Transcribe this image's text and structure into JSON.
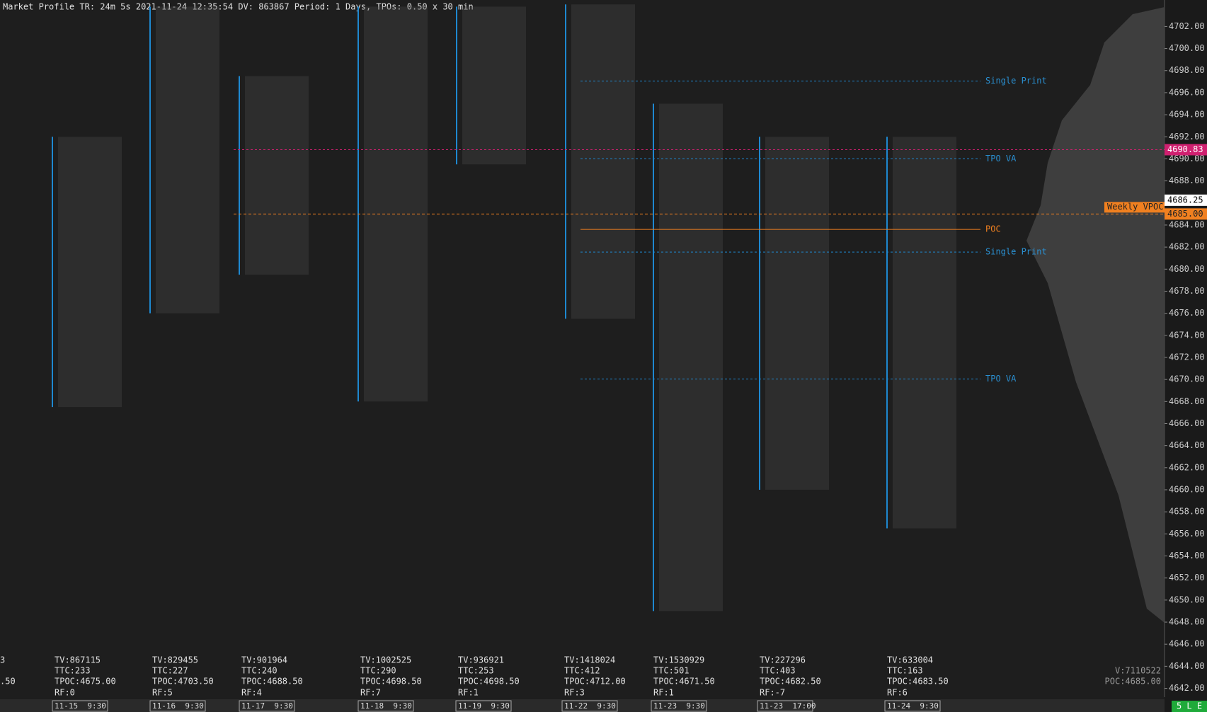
{
  "header": "Market Profile TR: 24m 5s 2021-11-24 12:35:54 DV: 863867 Period: 1 Days, TPOs: 0.50 x 30 min",
  "price_axis": {
    "ylim": [
      4641.2,
      4704.4
    ],
    "ticks": [
      {
        "value": 4642,
        "label": "4642.00"
      },
      {
        "value": 4644,
        "label": "4644.00"
      },
      {
        "value": 4646,
        "label": "4646.00"
      },
      {
        "value": 4648,
        "label": "4648.00"
      },
      {
        "value": 4650,
        "label": "4650.00"
      },
      {
        "value": 4652,
        "label": "4652.00"
      },
      {
        "value": 4654,
        "label": "4654.00"
      },
      {
        "value": 4656,
        "label": "4656.00"
      },
      {
        "value": 4658,
        "label": "4658.00"
      },
      {
        "value": 4660,
        "label": "4660.00"
      },
      {
        "value": 4662,
        "label": "4662.00"
      },
      {
        "value": 4664,
        "label": "4664.00"
      },
      {
        "value": 4666,
        "label": "4666.00"
      },
      {
        "value": 4668,
        "label": "4668.00"
      },
      {
        "value": 4670,
        "label": "4670.00"
      },
      {
        "value": 4672,
        "label": "4672.00"
      },
      {
        "value": 4674,
        "label": "4674.00"
      },
      {
        "value": 4676,
        "label": "4676.00"
      },
      {
        "value": 4678,
        "label": "4678.00"
      },
      {
        "value": 4680,
        "label": "4680.00"
      },
      {
        "value": 4682,
        "label": "4682.00"
      },
      {
        "value": 4684,
        "label": "4684.00"
      },
      {
        "value": 4686,
        "label": "4686.00"
      },
      {
        "value": 4688,
        "label": "4688.00"
      },
      {
        "value": 4690,
        "label": "4690.00"
      },
      {
        "value": 4692,
        "label": "4692.00"
      },
      {
        "value": 4694,
        "label": "4694.00"
      },
      {
        "value": 4696,
        "label": "4696.00"
      },
      {
        "value": 4698,
        "label": "4698.00"
      },
      {
        "value": 4700,
        "label": "4700.00"
      },
      {
        "value": 4702,
        "label": "4702.00"
      }
    ]
  },
  "partial_session": [
    "3",
    ".50"
  ],
  "sessions": [
    {
      "tv": "TV:867115",
      "ttc": "TTC:233",
      "tpoc": "TPOC:4675.00",
      "rf": "RF:0",
      "date": "11-15  9:30",
      "low": 4667.5,
      "high": 4692
    },
    {
      "tv": "TV:829455",
      "ttc": "TTC:227",
      "tpoc": "TPOC:4703.50",
      "rf": "RF:5",
      "date": "11-16  9:30",
      "low": 4676,
      "high": 4703.8
    },
    {
      "tv": "TV:901964",
      "ttc": "TTC:240",
      "tpoc": "TPOC:4688.50",
      "rf": "RF:4",
      "date": "11-17  9:30",
      "low": 4679.5,
      "high": 4697.5
    },
    {
      "tv": "TV:1002525",
      "ttc": "TTC:290",
      "tpoc": "TPOC:4698.50",
      "rf": "RF:7",
      "date": "11-18  9:30",
      "low": 4668,
      "high": 4703.8
    },
    {
      "tv": "TV:936921",
      "ttc": "TTC:253",
      "tpoc": "TPOC:4698.50",
      "rf": "RF:1",
      "date": "11-19  9:30",
      "low": 4689.5,
      "high": 4703.8
    },
    {
      "tv": "TV:1418024",
      "ttc": "TTC:412",
      "tpoc": "TPOC:4712.00",
      "rf": "RF:3",
      "date": "11-22  9:30",
      "low": 4675.5,
      "high": 4704
    },
    {
      "tv": "TV:1530929",
      "ttc": "TTC:501",
      "tpoc": "TPOC:4671.50",
      "rf": "RF:1",
      "date": "11-23  9:30",
      "low": 4649,
      "high": 4695
    },
    {
      "tv": "TV:227296",
      "ttc": "TTC:403",
      "tpoc": "TPOC:4682.50",
      "rf": "RF:-7",
      "date": "11-23  17:00",
      "low": 4660,
      "high": 4692
    },
    {
      "tv": "TV:633004",
      "ttc": "TTC:163",
      "tpoc": "TPOC:4683.50",
      "rf": "RF:6",
      "date": "11-24  9:30",
      "low": 4656.5,
      "high": 4692
    }
  ],
  "annotations": [
    {
      "label": "Single Print",
      "price": 4697.05
    },
    {
      "label": "TPO VA",
      "price": 4690
    },
    {
      "label": "POC",
      "price": 4683.6
    },
    {
      "label": "Single Print",
      "price": 4681.55
    },
    {
      "label": "TPO VA",
      "price": 4670.04
    }
  ],
  "weekly_vah_price": 4690.83,
  "weekly_vpoc": {
    "label": "Weekly VPOC",
    "price": {
      "value": 4685.0,
      "label": "4685.00"
    }
  },
  "current_price": 4686.25,
  "footer": {
    "volume": "V:7110522",
    "poc": "POC:4685.00",
    "status": "5 L E"
  }
}
